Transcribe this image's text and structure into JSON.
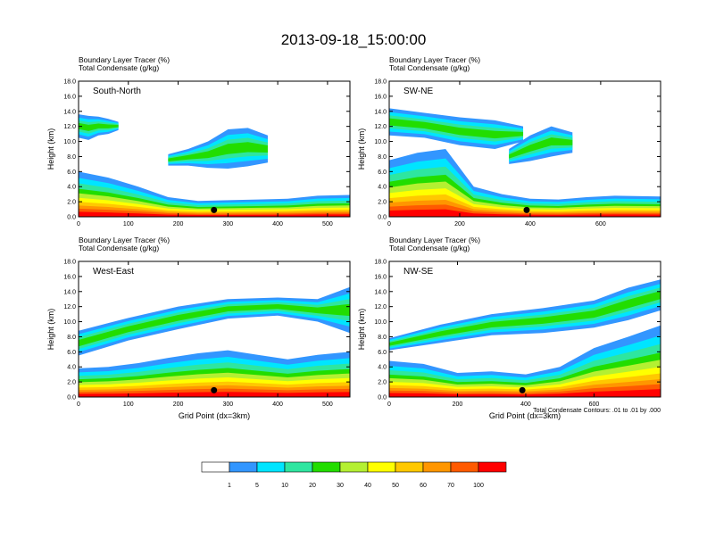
{
  "title": "2013-09-18_15:00:00",
  "chart_data": [
    {
      "type": "heatmap",
      "panel": "South-North",
      "header_lines": [
        "Boundary Layer Tracer   (%)",
        "Total Condensate   (g/kg)"
      ],
      "ylabel": "Height (km)",
      "xlabel": "",
      "xlim": [
        0,
        545
      ],
      "ylim": [
        0,
        18
      ],
      "xticks": [
        "0",
        "100",
        "200",
        "300",
        "400",
        "500"
      ],
      "yticks": [
        "0.0",
        "2.0",
        "4.0",
        "6.0",
        "8.0",
        "10.0",
        "12.0",
        "14.0",
        "16.0",
        "18.0"
      ],
      "marker": {
        "x": 272,
        "y": 0.9
      },
      "tracer_layers": [
        {
          "name": "boundary",
          "x": [
            0,
            60,
            120,
            180,
            240,
            300,
            360,
            420,
            480,
            545
          ],
          "top": [
            6.0,
            5.2,
            4.0,
            2.6,
            2.1,
            2.2,
            2.3,
            2.4,
            2.8,
            2.9
          ]
        },
        {
          "name": "upper",
          "x": [
            0,
            20,
            40,
            60,
            80
          ],
          "bottom": [
            10.5,
            10.2,
            10.8,
            11.0,
            11.5
          ],
          "top": [
            13.6,
            13.4,
            13.3,
            13.0,
            12.6
          ]
        },
        {
          "name": "tongue",
          "x": [
            180,
            220,
            260,
            300,
            340,
            380
          ],
          "bottom": [
            6.8,
            6.8,
            6.5,
            6.4,
            6.7,
            7.2
          ],
          "top": [
            8.3,
            9.0,
            10.0,
            11.6,
            11.8,
            10.8
          ]
        }
      ]
    },
    {
      "type": "heatmap",
      "panel": "SW-NE",
      "header_lines": [
        "Boundary Layer Tracer   (%)",
        "Total Condensate   (g/kg)"
      ],
      "ylabel": "Height (km)",
      "xlabel": "",
      "xlim": [
        0,
        770
      ],
      "ylim": [
        0,
        18
      ],
      "xticks": [
        "0",
        "200",
        "400",
        "600"
      ],
      "yticks": [
        "0.0",
        "2.0",
        "4.0",
        "6.0",
        "8.0",
        "10.0",
        "12.0",
        "14.0",
        "16.0",
        "18.0"
      ],
      "marker": {
        "x": 390,
        "y": 0.9
      },
      "tracer_layers": [
        {
          "name": "boundary",
          "x": [
            0,
            80,
            160,
            240,
            320,
            400,
            480,
            560,
            640,
            770
          ],
          "top": [
            7.5,
            8.5,
            9.0,
            4.0,
            3.0,
            2.4,
            2.3,
            2.6,
            2.8,
            2.7
          ]
        },
        {
          "name": "upper",
          "x": [
            0,
            100,
            200,
            300,
            380
          ],
          "bottom": [
            10.8,
            10.5,
            9.5,
            9.0,
            10.0
          ],
          "top": [
            14.4,
            13.8,
            13.2,
            12.8,
            12.0
          ]
        },
        {
          "name": "tongue",
          "x": [
            340,
            400,
            460,
            520
          ],
          "bottom": [
            7.0,
            7.4,
            8.0,
            8.5
          ],
          "top": [
            9.0,
            10.8,
            12.0,
            11.2
          ]
        }
      ]
    },
    {
      "type": "heatmap",
      "panel": "West-East",
      "header_lines": [
        "Boundary Layer Tracer   (%)",
        "Total Condensate   (g/kg)"
      ],
      "ylabel": "Height (km)",
      "xlabel": "Grid Point (dx=3km)",
      "xlim": [
        0,
        545
      ],
      "ylim": [
        0,
        18
      ],
      "xticks": [
        "0",
        "100",
        "200",
        "300",
        "400",
        "500"
      ],
      "yticks": [
        "0.0",
        "2.0",
        "4.0",
        "6.0",
        "8.0",
        "10.0",
        "12.0",
        "14.0",
        "16.0",
        "18.0"
      ],
      "marker": {
        "x": 272,
        "y": 0.9
      },
      "tracer_layers": [
        {
          "name": "boundary",
          "x": [
            0,
            60,
            120,
            180,
            240,
            300,
            360,
            420,
            480,
            545
          ],
          "top": [
            3.8,
            4.0,
            4.5,
            5.2,
            5.8,
            6.2,
            5.6,
            5.0,
            5.6,
            6.0
          ]
        },
        {
          "name": "upper",
          "x": [
            0,
            100,
            200,
            300,
            400,
            480,
            545
          ],
          "bottom": [
            5.5,
            7.5,
            9.0,
            10.4,
            10.8,
            10.0,
            8.5
          ],
          "top": [
            8.8,
            10.5,
            12.0,
            13.0,
            13.2,
            13.0,
            14.6
          ]
        }
      ]
    },
    {
      "type": "heatmap",
      "panel": "NW-SE",
      "header_lines": [
        "Boundary Layer Tracer   (%)",
        "Total Condensate   (g/kg)"
      ],
      "ylabel": "Height (km)",
      "xlabel": "Grid Point (dx=3km)",
      "xlim": [
        0,
        795
      ],
      "ylim": [
        0,
        18
      ],
      "xticks": [
        "0",
        "200",
        "400",
        "600"
      ],
      "yticks": [
        "0.0",
        "2.0",
        "4.0",
        "6.0",
        "8.0",
        "10.0",
        "12.0",
        "14.0",
        "16.0",
        "18.0"
      ],
      "marker": {
        "x": 390,
        "y": 0.9
      },
      "note": "Total Condensate Contours: .01 to .01 by .000",
      "tracer_layers": [
        {
          "name": "boundary",
          "x": [
            0,
            100,
            200,
            300,
            400,
            500,
            600,
            700,
            795
          ],
          "top": [
            4.8,
            4.4,
            3.2,
            3.4,
            3.0,
            4.0,
            6.5,
            8.0,
            9.5
          ]
        },
        {
          "name": "upper",
          "x": [
            0,
            150,
            300,
            450,
            600,
            700,
            795
          ],
          "bottom": [
            6.2,
            7.2,
            8.2,
            8.5,
            9.2,
            10.2,
            11.5
          ],
          "top": [
            7.8,
            9.6,
            11.0,
            11.8,
            12.8,
            14.5,
            15.6
          ]
        }
      ]
    }
  ],
  "colorbar": {
    "colors": [
      "#ffffff",
      "#3296ff",
      "#00e5ff",
      "#2ee6a0",
      "#22dd00",
      "#b4f032",
      "#ffff00",
      "#ffc800",
      "#ff9600",
      "#ff5a00",
      "#ff0000"
    ],
    "labels": [
      "1",
      "5",
      "10",
      "20",
      "30",
      "40",
      "50",
      "60",
      "70",
      "100"
    ]
  }
}
